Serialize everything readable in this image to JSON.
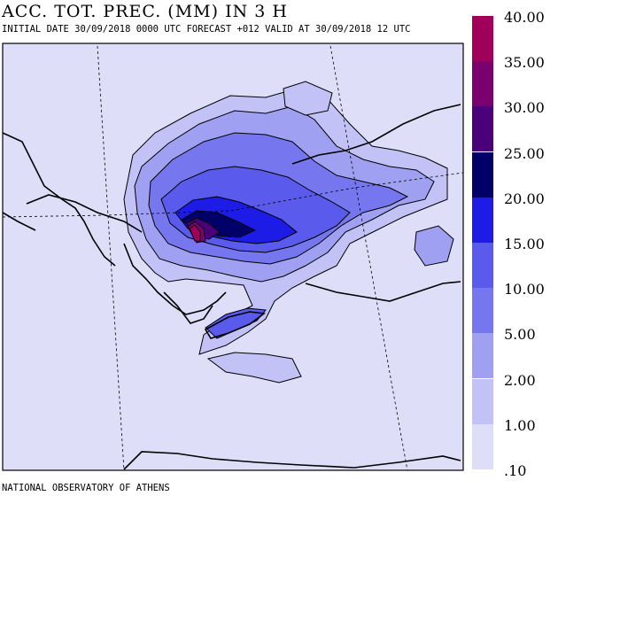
{
  "header": {
    "title": "ACC. TOT. PREC. (MM) IN 3 H",
    "subtitle": "INITIAL DATE 30/09/2018   0000 UTC FORECAST +012 VALID AT  30/09/2018  12 UTC"
  },
  "footer": {
    "credit": "NATIONAL OBSERVATORY OF ATHENS"
  },
  "map": {
    "background_color": "#dedef8",
    "coastline_color": "#000000",
    "region": "Greece / Aegean / Western Turkey"
  },
  "legend": {
    "labels": [
      "40.00",
      "35.00",
      "30.00",
      "25.00",
      "20.00",
      "15.00",
      "10.00",
      "5.00",
      "2.00",
      "1.00",
      ".10"
    ],
    "colors": [
      "#a0005a",
      "#7a0070",
      "#4a0078",
      "#000068",
      "#1c1ce6",
      "#5a5aec",
      "#7676ee",
      "#a0a0f2",
      "#c2c2f6",
      "#dedef8"
    ]
  }
}
